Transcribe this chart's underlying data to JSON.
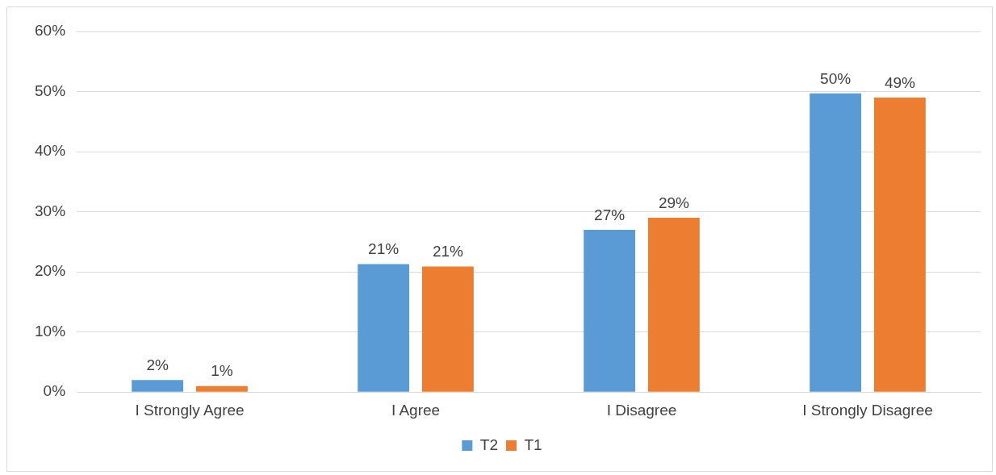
{
  "chart_data": {
    "type": "bar",
    "categories": [
      "I Strongly Agree",
      "I Agree",
      "I Disagree",
      "I Strongly Disagree"
    ],
    "series": [
      {
        "name": "T2",
        "color": "#5b9bd5",
        "values": [
          2,
          21.3,
          27,
          49.7
        ],
        "value_labels": [
          "2%",
          "21%",
          "27%",
          "50%"
        ]
      },
      {
        "name": "T1",
        "color": "#ed7d31",
        "values": [
          1,
          20.9,
          29,
          49
        ],
        "value_labels": [
          "1%",
          "21%",
          "29%",
          "49%"
        ]
      }
    ],
    "ylim": [
      0,
      60
    ],
    "yticks": [
      {
        "value": 0,
        "label": "0%"
      },
      {
        "value": 10,
        "label": "10%"
      },
      {
        "value": 20,
        "label": "20%"
      },
      {
        "value": 30,
        "label": "30%"
      },
      {
        "value": 40,
        "label": "40%"
      },
      {
        "value": 50,
        "label": "50%"
      },
      {
        "value": 60,
        "label": "60%"
      }
    ],
    "grid": "y",
    "legend": "bottom"
  }
}
